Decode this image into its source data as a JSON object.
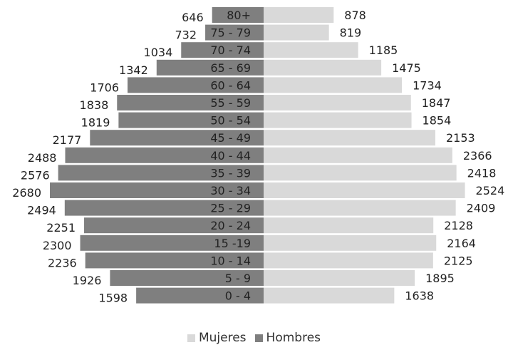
{
  "chart_data": {
    "type": "bar",
    "orientation": "horizontal-population-pyramid",
    "categories": [
      "80+",
      "75 - 79",
      "70 - 74",
      "65 - 69",
      "60 - 64",
      "55 - 59",
      "50 - 54",
      "45 - 49",
      "40 - 44",
      "35 - 39",
      "30 - 34",
      "25 - 29",
      "20 - 24",
      "15 -19",
      "10 - 14",
      "5 - 9",
      "0 - 4"
    ],
    "series": [
      {
        "name": "Mujeres",
        "color": "#d9d9d9",
        "side": "right",
        "values": [
          878,
          819,
          1185,
          1475,
          1734,
          1847,
          1854,
          2153,
          2366,
          2418,
          2524,
          2409,
          2128,
          2164,
          2125,
          1895,
          1638
        ]
      },
      {
        "name": "Hombres",
        "color": "#7f7f7f",
        "side": "left",
        "values": [
          646,
          732,
          1034,
          1342,
          1706,
          1838,
          1819,
          2177,
          2488,
          2576,
          2680,
          2494,
          2251,
          2300,
          2236,
          1926,
          1598
        ]
      }
    ],
    "legend": {
      "position": "bottom",
      "labels": [
        "Mujeres",
        "Hombres"
      ]
    },
    "grid": false
  }
}
